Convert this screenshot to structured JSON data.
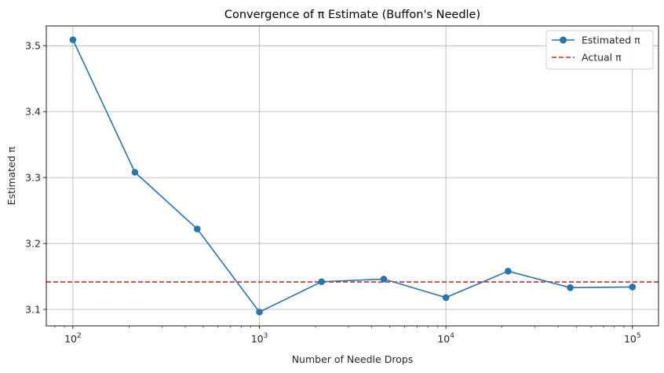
{
  "chart_data": {
    "type": "line",
    "title": "Convergence of π Estimate (Buffon's Needle)",
    "xlabel": "Number of Needle Drops",
    "ylabel": "Estimated π",
    "xscale": "log",
    "xlim": [
      72,
      138000
    ],
    "ylim": [
      3.075,
      3.53
    ],
    "grid": true,
    "legend_placement": "top-right",
    "x_ticks": [
      {
        "value": 100,
        "base": "10",
        "exp": "2"
      },
      {
        "value": 1000,
        "base": "10",
        "exp": "3"
      },
      {
        "value": 10000,
        "base": "10",
        "exp": "4"
      },
      {
        "value": 100000,
        "base": "10",
        "exp": "5"
      }
    ],
    "y_ticks": [
      "3.1",
      "3.2",
      "3.3",
      "3.4",
      "3.5"
    ],
    "series": [
      {
        "name": "Estimated π",
        "color": "#1f77b4",
        "style": "solid-with-markers",
        "x": [
          100,
          215,
          464,
          1000,
          2154,
          4642,
          10000,
          21544,
          46416,
          100000
        ],
        "y": [
          3.509,
          3.308,
          3.222,
          3.096,
          3.142,
          3.146,
          3.118,
          3.158,
          3.133,
          3.134
        ]
      },
      {
        "name": "Actual π",
        "color": "#d62728",
        "style": "dashed",
        "y_value": 3.14159
      }
    ]
  }
}
